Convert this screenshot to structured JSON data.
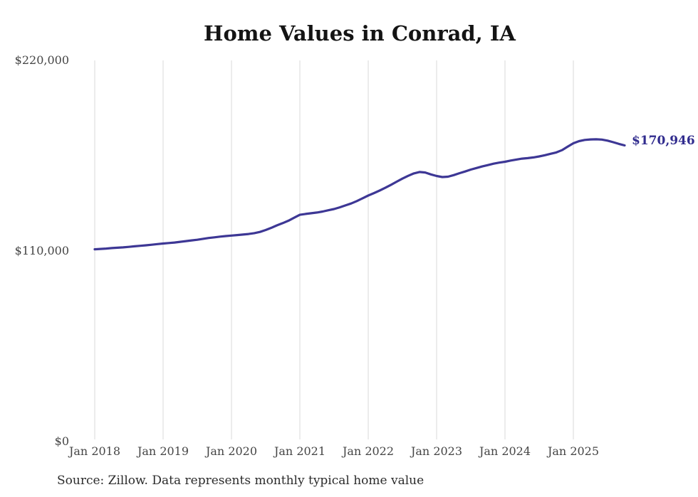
{
  "chart": {
    "title": "Home Values in Conrad, IA",
    "source": "Source: Zillow. Data represents monthly typical home value",
    "latest_value_label": "$170,946"
  },
  "colors": {
    "line": "#3d3795",
    "latest_label": "#312c8e",
    "gridline": "#d8d8d8",
    "axis_text": "#454545",
    "title_text": "#141414",
    "source_text": "#2b2b2b"
  },
  "chart_data": {
    "type": "line",
    "title": "Home Values in Conrad, IA",
    "frequency": "monthly",
    "x_start": "Jan 2018",
    "x_end": "Oct 2025",
    "ylim": [
      0,
      220000
    ],
    "grid": "vertical-yearly",
    "legend": "none",
    "latest_value": 170946,
    "y_ticks": [
      {
        "label": "$220,000",
        "value": 220000
      },
      {
        "label": "$110,000",
        "value": 110000
      },
      {
        "label": "$0",
        "value": 0
      }
    ],
    "x_ticks": [
      {
        "label": "Jan 2018",
        "month_index": 0
      },
      {
        "label": "Jan 2019",
        "month_index": 12
      },
      {
        "label": "Jan 2020",
        "month_index": 24
      },
      {
        "label": "Jan 2021",
        "month_index": 36
      },
      {
        "label": "Jan 2022",
        "month_index": 48
      },
      {
        "label": "Jan 2023",
        "month_index": 60
      },
      {
        "label": "Jan 2024",
        "month_index": 72
      },
      {
        "label": "Jan 2025",
        "month_index": 84
      }
    ],
    "series": [
      {
        "name": "Typical home value",
        "values": [
          111000,
          111200,
          111400,
          111700,
          111900,
          112100,
          112400,
          112700,
          113000,
          113300,
          113600,
          114000,
          114300,
          114600,
          114900,
          115300,
          115700,
          116100,
          116500,
          117000,
          117500,
          117900,
          118300,
          118600,
          118900,
          119200,
          119500,
          119800,
          120300,
          121000,
          122100,
          123400,
          124800,
          126100,
          127500,
          129200,
          130900,
          131400,
          131800,
          132200,
          132800,
          133500,
          134200,
          135200,
          136300,
          137400,
          138800,
          140400,
          142000,
          143400,
          144900,
          146500,
          148200,
          150000,
          151800,
          153400,
          154800,
          155600,
          155300,
          154200,
          153300,
          152700,
          152900,
          153800,
          154900,
          155900,
          157000,
          157900,
          158800,
          159600,
          160400,
          161000,
          161500,
          162200,
          162800,
          163300,
          163600,
          164000,
          164600,
          165300,
          166100,
          166900,
          168200,
          170200,
          172200,
          173400,
          174100,
          174400,
          174500,
          174300,
          173700,
          172800,
          171800,
          170946
        ]
      }
    ]
  }
}
